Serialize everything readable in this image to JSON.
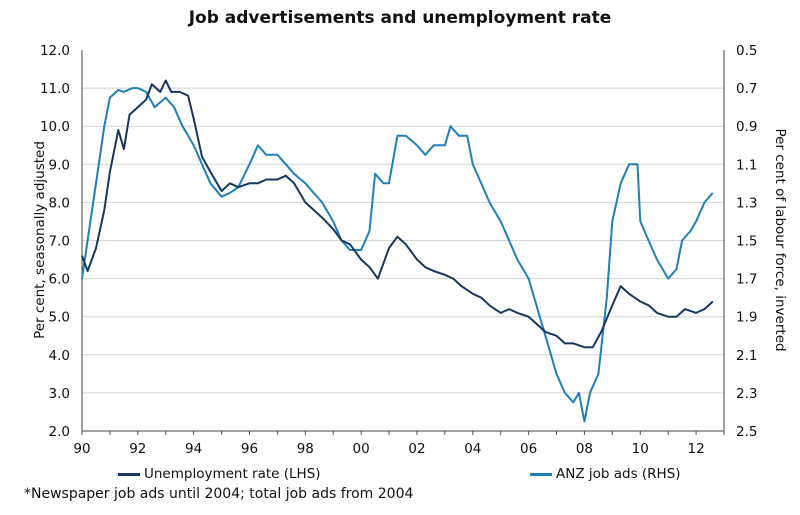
{
  "chart_data": {
    "type": "line",
    "title": "Job advertisements and unemployment rate",
    "ylabel_left": "Per cent, seasonally adjusted",
    "ylabel_right": "Per cent of labour force, inverted",
    "xlim": [
      1990,
      2013
    ],
    "ylim_left": [
      2.0,
      12.0
    ],
    "ylim_right_inverted": [
      2.5,
      0.5
    ],
    "x_tick_labels": [
      "90",
      "92",
      "94",
      "96",
      "98",
      "00",
      "02",
      "04",
      "06",
      "08",
      "10",
      "12"
    ],
    "y_left_tick_labels": [
      "2.0",
      "3.0",
      "4.0",
      "5.0",
      "6.0",
      "7.0",
      "8.0",
      "9.0",
      "10.0",
      "11.0",
      "12.0"
    ],
    "y_right_tick_labels": [
      "0.5",
      "0.7",
      "0.9",
      "1.1",
      "1.3",
      "1.5",
      "1.7",
      "1.9",
      "2.1",
      "2.3",
      "2.5"
    ],
    "series": [
      {
        "name": "Unemployment rate (LHS)",
        "axis": "left",
        "color": "#17375e",
        "x": [
          1990.0,
          1990.2,
          1990.5,
          1990.8,
          1991.0,
          1991.3,
          1991.5,
          1991.7,
          1992.0,
          1992.3,
          1992.5,
          1992.8,
          1993.0,
          1993.2,
          1993.5,
          1993.8,
          1994.0,
          1994.3,
          1994.6,
          1995.0,
          1995.3,
          1995.6,
          1996.0,
          1996.3,
          1996.6,
          1997.0,
          1997.3,
          1997.6,
          1998.0,
          1998.3,
          1998.6,
          1999.0,
          1999.3,
          1999.6,
          2000.0,
          2000.3,
          2000.6,
          2001.0,
          2001.3,
          2001.6,
          2002.0,
          2002.3,
          2002.6,
          2003.0,
          2003.3,
          2003.6,
          2004.0,
          2004.3,
          2004.6,
          2005.0,
          2005.3,
          2005.6,
          2006.0,
          2006.3,
          2006.6,
          2007.0,
          2007.3,
          2007.6,
          2008.0,
          2008.3,
          2008.6,
          2009.0,
          2009.3,
          2009.6,
          2010.0,
          2010.3,
          2010.6,
          2011.0,
          2011.3,
          2011.6,
          2012.0,
          2012.3,
          2012.6
        ],
        "values": [
          6.6,
          6.2,
          6.8,
          7.8,
          8.8,
          9.9,
          9.4,
          10.3,
          10.5,
          10.7,
          11.1,
          10.9,
          11.2,
          10.9,
          10.9,
          10.8,
          10.2,
          9.2,
          8.8,
          8.3,
          8.5,
          8.4,
          8.5,
          8.5,
          8.6,
          8.6,
          8.7,
          8.5,
          8.0,
          7.8,
          7.6,
          7.3,
          7.0,
          6.9,
          6.5,
          6.3,
          6.0,
          6.8,
          7.1,
          6.9,
          6.5,
          6.3,
          6.2,
          6.1,
          6.0,
          5.8,
          5.6,
          5.5,
          5.3,
          5.1,
          5.2,
          5.1,
          5.0,
          4.8,
          4.6,
          4.5,
          4.3,
          4.3,
          4.2,
          4.2,
          4.6,
          5.3,
          5.8,
          5.6,
          5.4,
          5.3,
          5.1,
          5.0,
          5.0,
          5.2,
          5.1,
          5.2,
          5.4
        ]
      },
      {
        "name": "ANZ job ads (RHS)",
        "axis": "right",
        "color": "#1f7fb8",
        "x": [
          1990.0,
          1990.2,
          1990.5,
          1990.8,
          1991.0,
          1991.3,
          1991.5,
          1991.8,
          1992.0,
          1992.3,
          1992.6,
          1993.0,
          1993.3,
          1993.6,
          1994.0,
          1994.3,
          1994.6,
          1995.0,
          1995.3,
          1995.6,
          1996.0,
          1996.3,
          1996.6,
          1997.0,
          1997.3,
          1997.6,
          1998.0,
          1998.3,
          1998.6,
          1999.0,
          1999.3,
          1999.6,
          2000.0,
          2000.3,
          2000.5,
          2000.8,
          2001.0,
          2001.3,
          2001.6,
          2002.0,
          2002.3,
          2002.6,
          2003.0,
          2003.2,
          2003.5,
          2003.8,
          2004.0,
          2004.3,
          2004.6,
          2005.0,
          2005.3,
          2005.6,
          2006.0,
          2006.3,
          2006.6,
          2007.0,
          2007.3,
          2007.6,
          2007.8,
          2008.0,
          2008.2,
          2008.5,
          2008.8,
          2009.0,
          2009.3,
          2009.6,
          2009.9,
          2010.0,
          2010.3,
          2010.6,
          2011.0,
          2011.3,
          2011.5,
          2011.8,
          2012.0,
          2012.3,
          2012.6
        ],
        "values": [
          1.7,
          1.5,
          1.2,
          0.9,
          0.75,
          0.71,
          0.72,
          0.7,
          0.7,
          0.72,
          0.8,
          0.75,
          0.8,
          0.9,
          1.0,
          1.1,
          1.2,
          1.27,
          1.25,
          1.22,
          1.1,
          1.0,
          1.05,
          1.05,
          1.1,
          1.15,
          1.2,
          1.25,
          1.3,
          1.4,
          1.5,
          1.55,
          1.55,
          1.45,
          1.15,
          1.2,
          1.2,
          0.95,
          0.95,
          1.0,
          1.05,
          1.0,
          1.0,
          0.9,
          0.95,
          0.95,
          1.1,
          1.2,
          1.3,
          1.4,
          1.5,
          1.6,
          1.7,
          1.85,
          2.0,
          2.2,
          2.3,
          2.35,
          2.3,
          2.45,
          2.3,
          2.2,
          1.8,
          1.4,
          1.2,
          1.1,
          1.1,
          1.4,
          1.5,
          1.6,
          1.7,
          1.65,
          1.5,
          1.45,
          1.4,
          1.3,
          1.25
        ]
      }
    ],
    "grid": "horizontal",
    "legend_position": "bottom",
    "footnote": "*Newspaper job ads until 2004; total job ads from 2004"
  }
}
